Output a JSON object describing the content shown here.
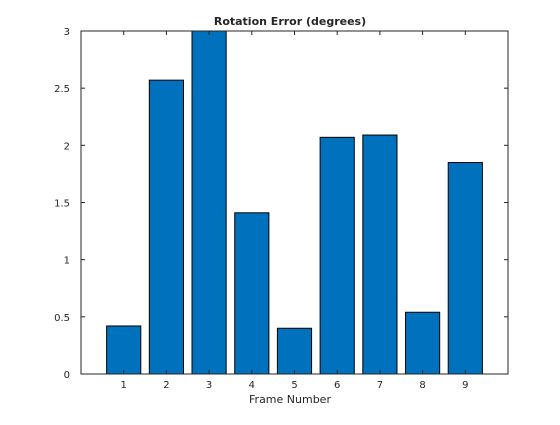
{
  "chart_data": {
    "type": "bar",
    "title": "Rotation Error (degrees)",
    "xlabel": "Frame Number",
    "ylabel": "",
    "categories": [
      "1",
      "2",
      "3",
      "4",
      "5",
      "6",
      "7",
      "8",
      "9"
    ],
    "values": [
      0.42,
      2.57,
      3.0,
      1.41,
      0.4,
      2.07,
      2.09,
      0.54,
      1.85
    ],
    "xlim": [
      0,
      10
    ],
    "ylim": [
      0,
      3
    ],
    "yticks": [
      0,
      0.5,
      1,
      1.5,
      2,
      2.5,
      3
    ],
    "ytick_labels": [
      "0",
      "0.5",
      "1",
      "1.5",
      "2",
      "2.5",
      "3"
    ],
    "grid": false,
    "legend": "none",
    "colors": {
      "bar": "#0072bd",
      "bar_edge": "#000000",
      "axes": "#262626"
    }
  }
}
